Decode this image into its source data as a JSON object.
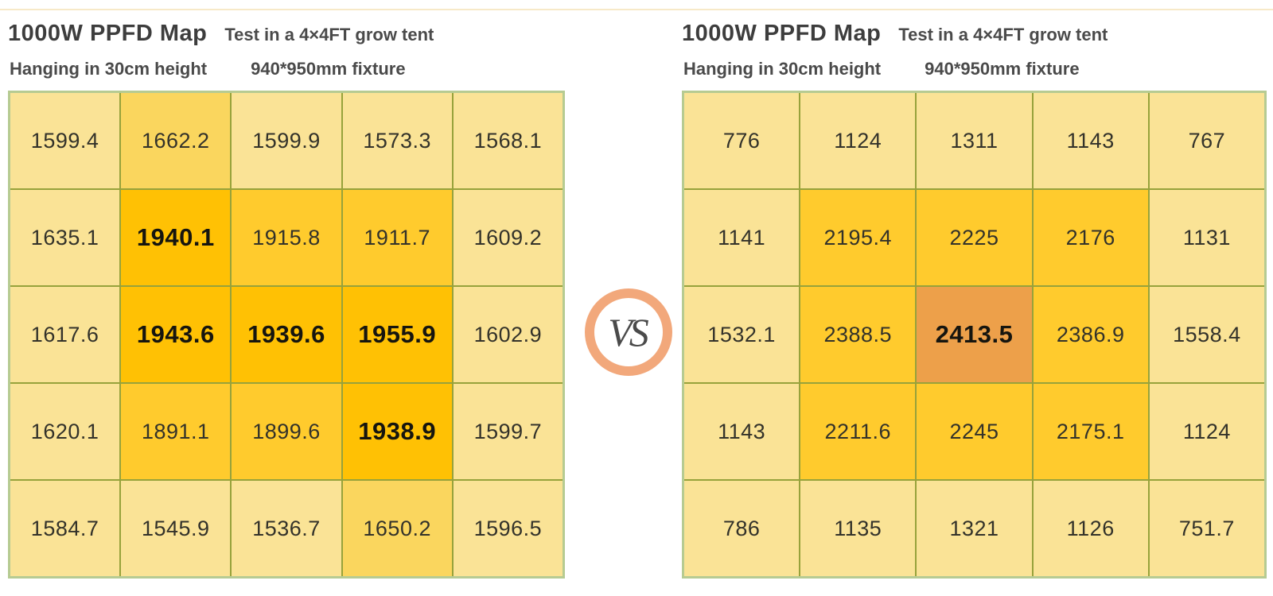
{
  "palette": {
    "light": "#fae396",
    "mid": "#fad65e",
    "gold": "#ffcb2d",
    "dark": "#ffc104",
    "orange": "#eda04a",
    "grid_line": "#97a23b",
    "grid_outer_border": "#b6cb92",
    "vs_ring": "#f2a87b",
    "top_rule": "#f7e9c8"
  },
  "vs_label": "VS",
  "maps": [
    {
      "title": "1000W PPFD Map",
      "subtitle": "Test in a 4×4FT grow tent",
      "note_height": "Hanging in 30cm height",
      "note_fixture": "940*950mm fixture",
      "rows": [
        [
          {
            "v": "1599.4",
            "s": "light"
          },
          {
            "v": "1662.2",
            "s": "mid"
          },
          {
            "v": "1599.9",
            "s": "light"
          },
          {
            "v": "1573.3",
            "s": "light"
          },
          {
            "v": "1568.1",
            "s": "light"
          }
        ],
        [
          {
            "v": "1635.1",
            "s": "light"
          },
          {
            "v": "1940.1",
            "s": "dark",
            "b": true
          },
          {
            "v": "1915.8",
            "s": "gold"
          },
          {
            "v": "1911.7",
            "s": "gold"
          },
          {
            "v": "1609.2",
            "s": "light"
          }
        ],
        [
          {
            "v": "1617.6",
            "s": "light"
          },
          {
            "v": "1943.6",
            "s": "dark",
            "b": true
          },
          {
            "v": "1939.6",
            "s": "dark",
            "b": true
          },
          {
            "v": "1955.9",
            "s": "dark",
            "b": true
          },
          {
            "v": "1602.9",
            "s": "light"
          }
        ],
        [
          {
            "v": "1620.1",
            "s": "light"
          },
          {
            "v": "1891.1",
            "s": "gold"
          },
          {
            "v": "1899.6",
            "s": "gold"
          },
          {
            "v": "1938.9",
            "s": "dark",
            "b": true
          },
          {
            "v": "1599.7",
            "s": "light"
          }
        ],
        [
          {
            "v": "1584.7",
            "s": "light"
          },
          {
            "v": "1545.9",
            "s": "light"
          },
          {
            "v": "1536.7",
            "s": "light"
          },
          {
            "v": "1650.2",
            "s": "mid"
          },
          {
            "v": "1596.5",
            "s": "light"
          }
        ]
      ]
    },
    {
      "title": "1000W PPFD Map",
      "subtitle": "Test in a 4×4FT grow tent",
      "note_height": "Hanging in 30cm height",
      "note_fixture": "940*950mm fixture",
      "rows": [
        [
          {
            "v": "776",
            "s": "light"
          },
          {
            "v": "1124",
            "s": "light"
          },
          {
            "v": "1311",
            "s": "light"
          },
          {
            "v": "1143",
            "s": "light"
          },
          {
            "v": "767",
            "s": "light"
          }
        ],
        [
          {
            "v": "1141",
            "s": "light"
          },
          {
            "v": "2195.4",
            "s": "gold"
          },
          {
            "v": "2225",
            "s": "gold"
          },
          {
            "v": "2176",
            "s": "gold"
          },
          {
            "v": "1131",
            "s": "light"
          }
        ],
        [
          {
            "v": "1532.1",
            "s": "light"
          },
          {
            "v": "2388.5",
            "s": "gold"
          },
          {
            "v": "2413.5",
            "s": "orange",
            "b": true
          },
          {
            "v": "2386.9",
            "s": "gold"
          },
          {
            "v": "1558.4",
            "s": "light"
          }
        ],
        [
          {
            "v": "1143",
            "s": "light"
          },
          {
            "v": "2211.6",
            "s": "gold"
          },
          {
            "v": "2245",
            "s": "gold"
          },
          {
            "v": "2175.1",
            "s": "gold"
          },
          {
            "v": "1124",
            "s": "light"
          }
        ],
        [
          {
            "v": "786",
            "s": "light"
          },
          {
            "v": "1135",
            "s": "light"
          },
          {
            "v": "1321",
            "s": "light"
          },
          {
            "v": "1126",
            "s": "light"
          },
          {
            "v": "751.7",
            "s": "light"
          }
        ]
      ]
    }
  ],
  "chart_data": [
    {
      "type": "heatmap",
      "title": "1000W PPFD Map",
      "subtitle": "Test in a 4×4FT grow tent",
      "annotations": [
        "Hanging in 30cm height",
        "940*950mm fixture"
      ],
      "grid": [
        5,
        5
      ],
      "values": [
        [
          1599.4,
          1662.2,
          1599.9,
          1573.3,
          1568.1
        ],
        [
          1635.1,
          1940.1,
          1915.8,
          1911.7,
          1609.2
        ],
        [
          1617.6,
          1943.6,
          1939.6,
          1955.9,
          1602.9
        ],
        [
          1620.1,
          1891.1,
          1899.6,
          1938.9,
          1599.7
        ],
        [
          1584.7,
          1545.9,
          1536.7,
          1650.2,
          1596.5
        ]
      ],
      "max_value": 1955.9,
      "legend": "off"
    },
    {
      "type": "heatmap",
      "title": "1000W PPFD Map",
      "subtitle": "Test in a 4×4FT grow tent",
      "annotations": [
        "Hanging in 30cm height",
        "940*950mm fixture"
      ],
      "grid": [
        5,
        5
      ],
      "values": [
        [
          776,
          1124,
          1311,
          1143,
          767
        ],
        [
          1141,
          2195.4,
          2225,
          2176,
          1131
        ],
        [
          1532.1,
          2388.5,
          2413.5,
          2386.9,
          1558.4
        ],
        [
          1143,
          2211.6,
          2245,
          2175.1,
          1124
        ],
        [
          786,
          1135,
          1321,
          1126,
          751.7
        ]
      ],
      "max_value": 2413.5,
      "legend": "off"
    }
  ]
}
